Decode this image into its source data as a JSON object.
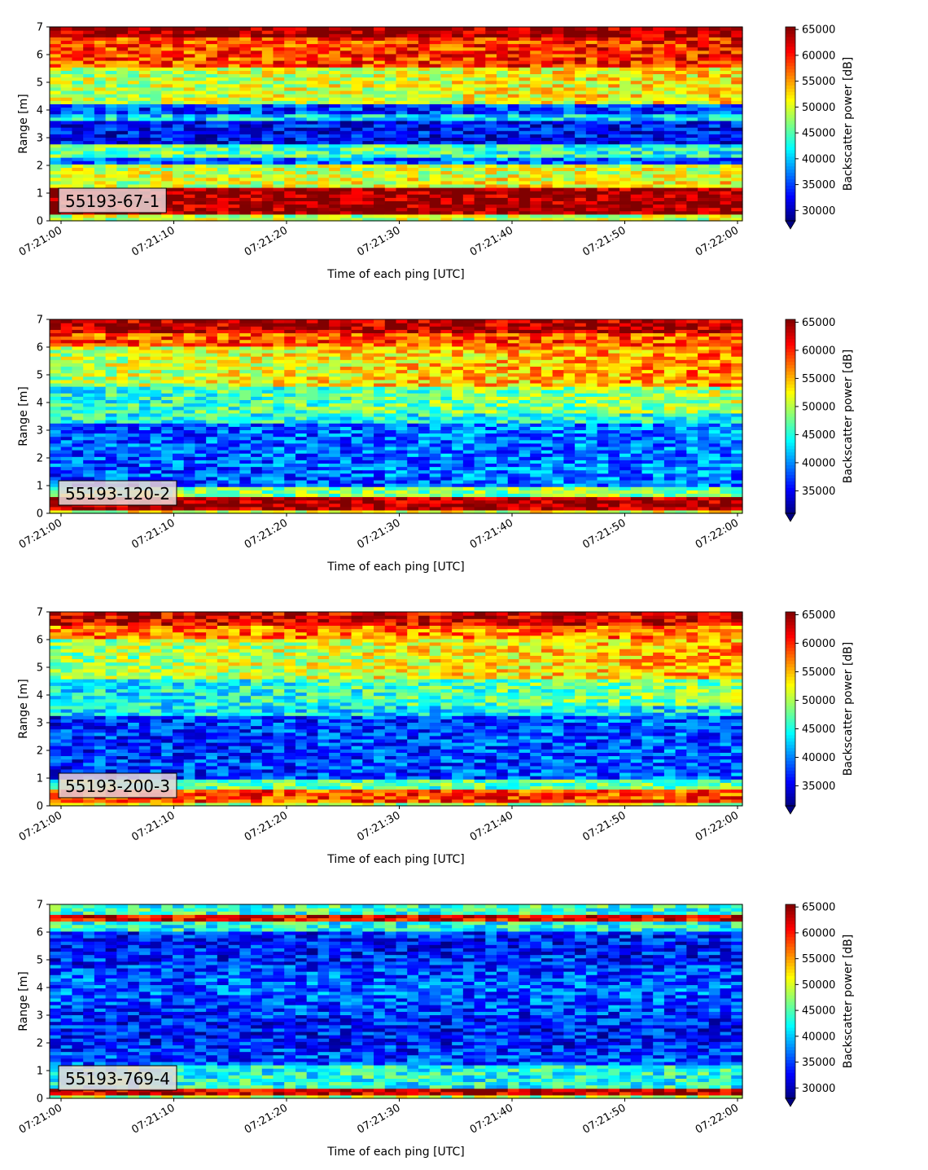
{
  "chart_data": [
    {
      "type": "heatmap",
      "label": "55193-67-1",
      "xlabel": "Time of each ping [UTC]",
      "ylabel": "Range [m]",
      "xticks": [
        "07:21:00",
        "07:21:10",
        "07:21:20",
        "07:21:30",
        "07:21:40",
        "07:21:50",
        "07:22:00"
      ],
      "ylim": [
        0,
        7
      ],
      "yticks": [
        "0",
        "1",
        "2",
        "3",
        "4",
        "5",
        "6",
        "7"
      ],
      "colorbar": {
        "label": "Backscatter power [dB]",
        "range": [
          28000,
          65500
        ],
        "ticks": [
          "30000",
          "35000",
          "40000",
          "45000",
          "50000",
          "55000",
          "60000",
          "65000"
        ],
        "extend": "min",
        "colormap": "jet"
      }
    },
    {
      "type": "heatmap",
      "label": "55193-120-2",
      "xlabel": "Time of each ping [UTC]",
      "ylabel": "Range [m]",
      "xticks": [
        "07:21:00",
        "07:21:10",
        "07:21:20",
        "07:21:30",
        "07:21:40",
        "07:21:50",
        "07:22:00"
      ],
      "ylim": [
        0,
        7
      ],
      "yticks": [
        "0",
        "1",
        "2",
        "3",
        "4",
        "5",
        "6",
        "7"
      ],
      "colorbar": {
        "label": "Backscatter power [dB]",
        "range": [
          31000,
          65500
        ],
        "ticks": [
          "35000",
          "40000",
          "45000",
          "50000",
          "55000",
          "60000",
          "65000"
        ],
        "extend": "min",
        "colormap": "jet"
      }
    },
    {
      "type": "heatmap",
      "label": "55193-200-3",
      "xlabel": "Time of each ping [UTC]",
      "ylabel": "Range [m]",
      "xticks": [
        "07:21:00",
        "07:21:10",
        "07:21:20",
        "07:21:30",
        "07:21:40",
        "07:21:50",
        "07:22:00"
      ],
      "ylim": [
        0,
        7
      ],
      "yticks": [
        "0",
        "1",
        "2",
        "3",
        "4",
        "5",
        "6",
        "7"
      ],
      "colorbar": {
        "label": "Backscatter power [dB]",
        "range": [
          31500,
          65500
        ],
        "ticks": [
          "35000",
          "40000",
          "45000",
          "50000",
          "55000",
          "60000",
          "65000"
        ],
        "extend": "min",
        "colormap": "jet"
      }
    },
    {
      "type": "heatmap",
      "label": "55193-769-4",
      "xlabel": "Time of each ping [UTC]",
      "ylabel": "Range [m]",
      "xticks": [
        "07:21:00",
        "07:21:10",
        "07:21:20",
        "07:21:30",
        "07:21:40",
        "07:21:50",
        "07:22:00"
      ],
      "ylim": [
        0,
        7
      ],
      "yticks": [
        "0",
        "1",
        "2",
        "3",
        "4",
        "5",
        "6",
        "7"
      ],
      "colorbar": {
        "label": "Backscatter power [dB]",
        "range": [
          28000,
          65500
        ],
        "ticks": [
          "30000",
          "35000",
          "40000",
          "45000",
          "50000",
          "55000",
          "60000",
          "65000"
        ],
        "extend": "min",
        "colormap": "jet"
      }
    }
  ]
}
